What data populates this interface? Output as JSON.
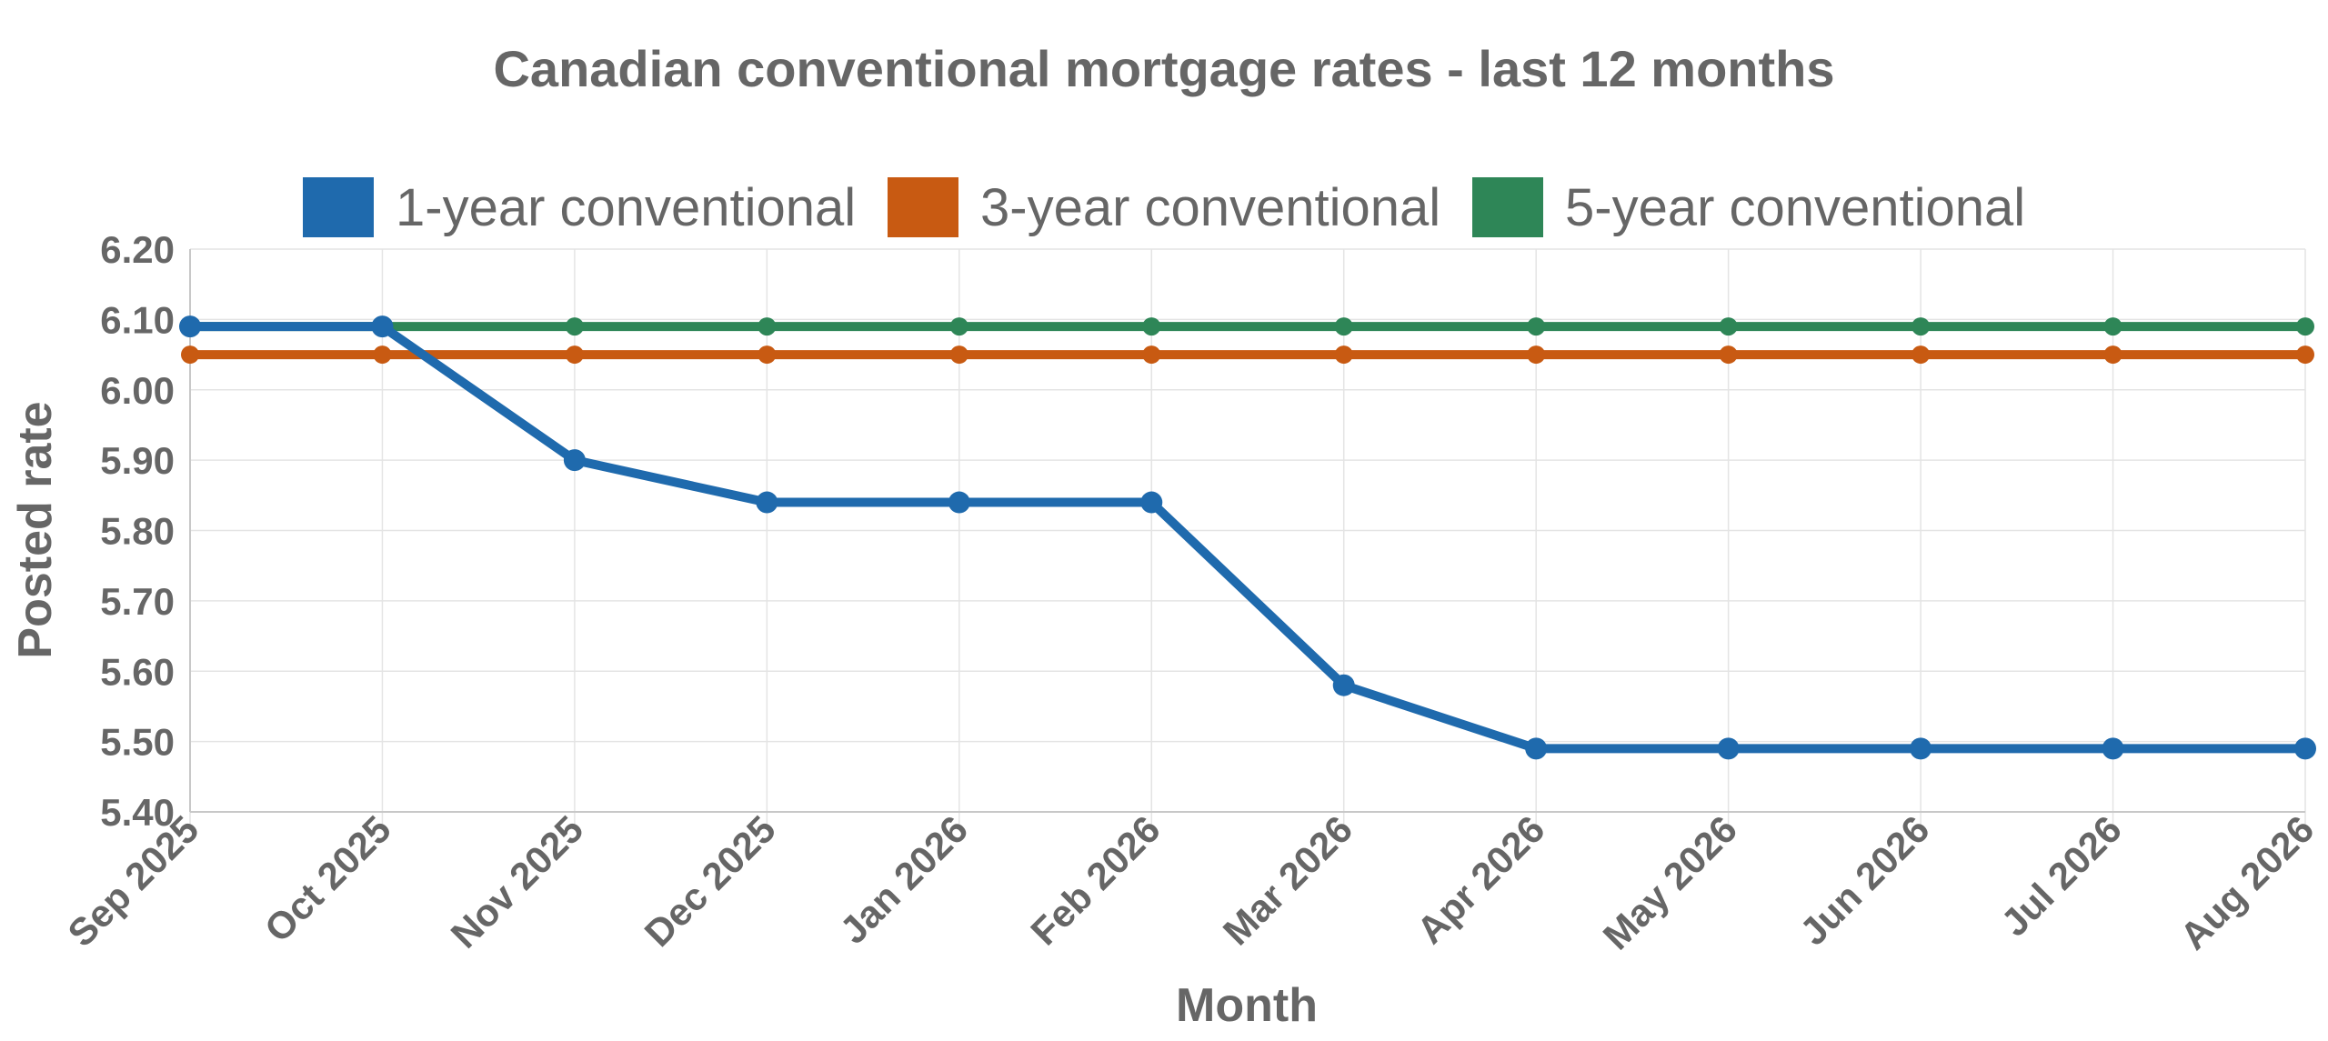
{
  "chart_data": {
    "type": "line",
    "title": "Canadian conventional mortgage rates - last 12 months",
    "xlabel": "Month",
    "ylabel": "Posted rate",
    "categories": [
      "Sep 2025",
      "Oct 2025",
      "Nov 2025",
      "Dec 2025",
      "Jan 2026",
      "Feb 2026",
      "Mar 2026",
      "Apr 2026",
      "May 2026",
      "Jun 2026",
      "Jul 2026",
      "Aug 2026"
    ],
    "y_ticks": [
      "5.40",
      "5.50",
      "5.60",
      "5.70",
      "5.80",
      "5.90",
      "6.00",
      "6.10",
      "6.20"
    ],
    "ylim": [
      5.4,
      6.2
    ],
    "grid": true,
    "legend_position": "top",
    "series": [
      {
        "name": "1-year conventional",
        "color": "#1f6aad",
        "values": [
          6.09,
          6.09,
          5.9,
          5.84,
          5.84,
          5.84,
          5.58,
          5.49,
          5.49,
          5.49,
          5.49,
          5.49
        ]
      },
      {
        "name": "3-year conventional",
        "color": "#c85a12",
        "values": [
          6.05,
          6.05,
          6.05,
          6.05,
          6.05,
          6.05,
          6.05,
          6.05,
          6.05,
          6.05,
          6.05,
          6.05
        ]
      },
      {
        "name": "5-year conventional",
        "color": "#2e8657",
        "values": [
          6.09,
          6.09,
          6.09,
          6.09,
          6.09,
          6.09,
          6.09,
          6.09,
          6.09,
          6.09,
          6.09,
          6.09
        ]
      }
    ]
  }
}
